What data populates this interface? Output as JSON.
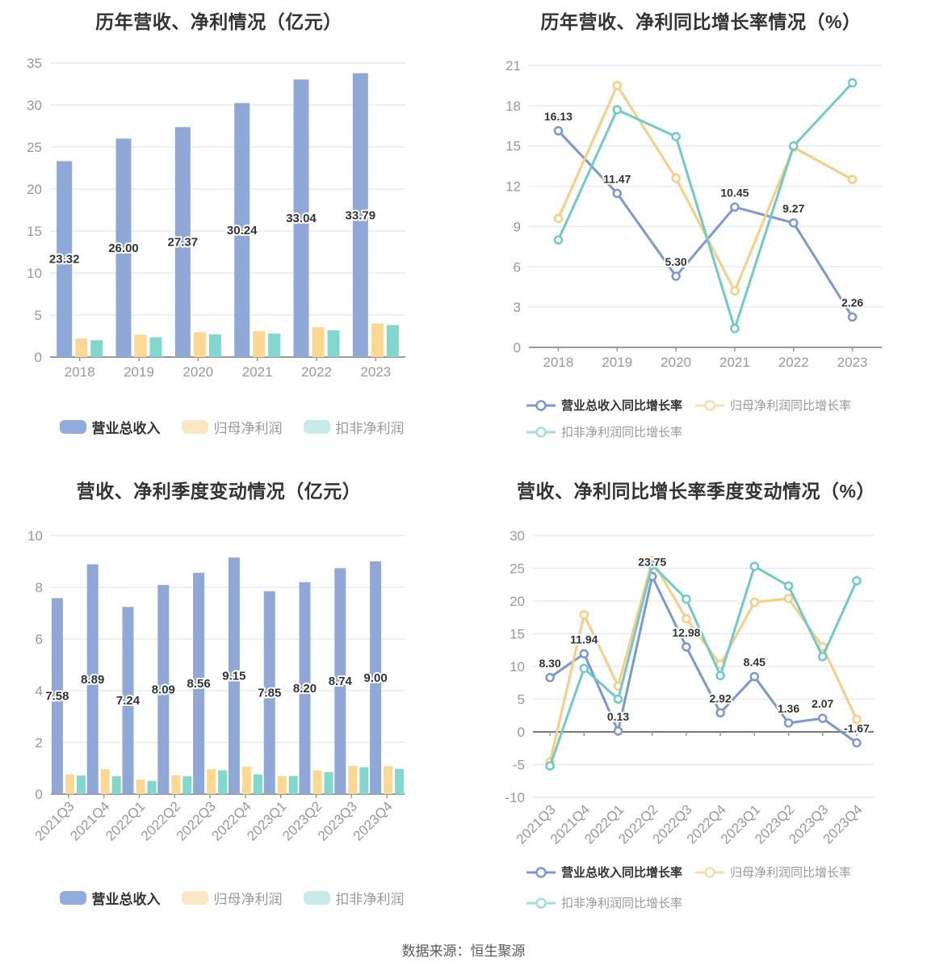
{
  "page": {
    "source_note": "数据来源：恒生聚源"
  },
  "colors": {
    "background": "#ffffff",
    "title_text": "#333333",
    "tick_text": "#999999",
    "grid_line": "#E6ECF6",
    "axis_line": "#999999",
    "zero_axis_line": "#777777",
    "value_label_text": "#333333",
    "bar_blue": "#8FA8D8",
    "bar_yellow": "#FCD892",
    "bar_teal": "#82D7CE",
    "line_blue": "#7D97D4",
    "line_yellow": "#FACD82",
    "line_teal": "#6ECBC8"
  },
  "chart_data": [
    {
      "type": "bar",
      "title": "历年营收、净利情况（亿元）",
      "ylabel": "",
      "xlabel": "",
      "categories": [
        "2018",
        "2019",
        "2020",
        "2021",
        "2022",
        "2023"
      ],
      "ylim": [
        0,
        35
      ],
      "ystep": 5,
      "grid": true,
      "legend_position": "bottom-center",
      "series": [
        {
          "name": "营业总收入",
          "key": "revenue",
          "color": "#8FA8D8",
          "legend_color": "#92ACDC",
          "values": [
            23.32,
            26.0,
            27.37,
            30.24,
            33.04,
            33.79
          ],
          "labels": [
            "23.32",
            "26.00",
            "27.37",
            "30.24",
            "33.04",
            "33.79"
          ]
        },
        {
          "name": "归母净利润",
          "key": "net-profit",
          "color": "#FCD892",
          "legend_color": "#FCE7C4",
          "values": [
            2.2,
            2.65,
            2.95,
            3.1,
            3.55,
            4.0
          ]
        },
        {
          "name": "扣非净利润",
          "key": "non-gaap-net-profit",
          "color": "#82D7CE",
          "legend_color": "#C9EBE7",
          "values": [
            2.0,
            2.35,
            2.7,
            2.8,
            3.2,
            3.8
          ]
        }
      ]
    },
    {
      "type": "line",
      "title": "历年营收、净利同比增长率情况（%）",
      "ylabel": "",
      "xlabel": "",
      "categories": [
        "2018",
        "2019",
        "2020",
        "2021",
        "2022",
        "2023"
      ],
      "ylim": [
        0,
        21
      ],
      "ystep": 3,
      "grid": true,
      "legend_position": "bottom-left-two-rows",
      "series": [
        {
          "name": "营业总收入同比增长率",
          "key": "revenue-growth",
          "color": "#7D97D4",
          "legend_color": "#7D97D4",
          "values": [
            16.13,
            11.47,
            5.3,
            10.45,
            9.27,
            2.26
          ],
          "labels": [
            "16.13",
            "11.47",
            "5.30",
            "10.45",
            "9.27",
            "2.26"
          ]
        },
        {
          "name": "归母净利润同比增长率",
          "key": "net-profit-growth",
          "color": "#FACD82",
          "legend_color": "#FADFAC",
          "values": [
            9.6,
            19.5,
            12.6,
            4.2,
            14.9,
            12.5
          ]
        },
        {
          "name": "扣非净利润同比增长率",
          "key": "non-gaap-net-profit-growth",
          "color": "#6ECBC8",
          "legend_color": "#9FE0DA",
          "values": [
            8.0,
            17.7,
            15.7,
            1.4,
            15.0,
            19.7
          ]
        }
      ]
    },
    {
      "type": "bar",
      "title": "营收、净利季度变动情况（亿元）",
      "ylabel": "",
      "xlabel": "",
      "categories": [
        "2021Q3",
        "2021Q4",
        "2022Q1",
        "2022Q2",
        "2022Q3",
        "2022Q4",
        "2023Q1",
        "2023Q2",
        "2023Q3",
        "2023Q4"
      ],
      "ylim": [
        0,
        10
      ],
      "ystep": 2,
      "grid": true,
      "x_label_rotate": 45,
      "legend_position": "bottom-center",
      "series": [
        {
          "name": "营业总收入",
          "key": "revenue",
          "color": "#8FA8D8",
          "legend_color": "#92ACDC",
          "values": [
            7.58,
            8.89,
            7.24,
            8.09,
            8.56,
            9.15,
            7.85,
            8.2,
            8.74,
            9.0
          ],
          "labels": [
            "7.58",
            "8.89",
            "7.24",
            "8.09",
            "8.56",
            "9.15",
            "7.85",
            "8.20",
            "8.74",
            "9.00"
          ]
        },
        {
          "name": "归母净利润",
          "key": "net-profit",
          "color": "#FCD892",
          "legend_color": "#FCE7C4",
          "values": [
            0.76,
            0.96,
            0.56,
            0.73,
            0.96,
            1.06,
            0.69,
            0.92,
            1.09,
            1.08
          ]
        },
        {
          "name": "扣非净利润",
          "key": "non-gaap-net-profit",
          "color": "#82D7CE",
          "legend_color": "#C9EBE7",
          "values": [
            0.72,
            0.69,
            0.51,
            0.69,
            0.92,
            0.76,
            0.7,
            0.85,
            1.04,
            0.98
          ]
        }
      ]
    },
    {
      "type": "line",
      "title": "营收、净利同比增长率季度变动情况（%）",
      "ylabel": "",
      "xlabel": "",
      "categories": [
        "2021Q3",
        "2021Q4",
        "2022Q1",
        "2022Q2",
        "2022Q3",
        "2022Q4",
        "2023Q1",
        "2023Q2",
        "2023Q3",
        "2023Q4"
      ],
      "ylim": [
        -10,
        30
      ],
      "ystep": 5,
      "grid": true,
      "x_label_rotate": 45,
      "legend_position": "bottom-left-two-rows",
      "series": [
        {
          "name": "营业总收入同比增长率",
          "key": "revenue-growth",
          "color": "#7D97D4",
          "legend_color": "#7D97D4",
          "values": [
            8.3,
            11.94,
            0.13,
            23.75,
            12.98,
            2.92,
            8.45,
            1.36,
            2.07,
            -1.67
          ],
          "labels": [
            "8.30",
            "11.94",
            "0.13",
            "23.75",
            "12.98",
            "2.92",
            "8.45",
            "1.36",
            "2.07",
            "-1.67"
          ]
        },
        {
          "name": "归母净利润同比增长率",
          "key": "net-profit-growth",
          "color": "#FACD82",
          "legend_color": "#FADFAC",
          "values": [
            -4.6,
            17.9,
            7.0,
            26.2,
            17.3,
            10.3,
            19.8,
            20.4,
            13.0,
            1.9
          ]
        },
        {
          "name": "扣非净利润同比增长率",
          "key": "non-gaap-net-profit-growth",
          "color": "#6ECBC8",
          "legend_color": "#9FE0DA",
          "values": [
            -5.2,
            9.7,
            5.0,
            25.5,
            20.3,
            8.6,
            25.3,
            22.3,
            11.5,
            23.1
          ]
        }
      ]
    }
  ]
}
